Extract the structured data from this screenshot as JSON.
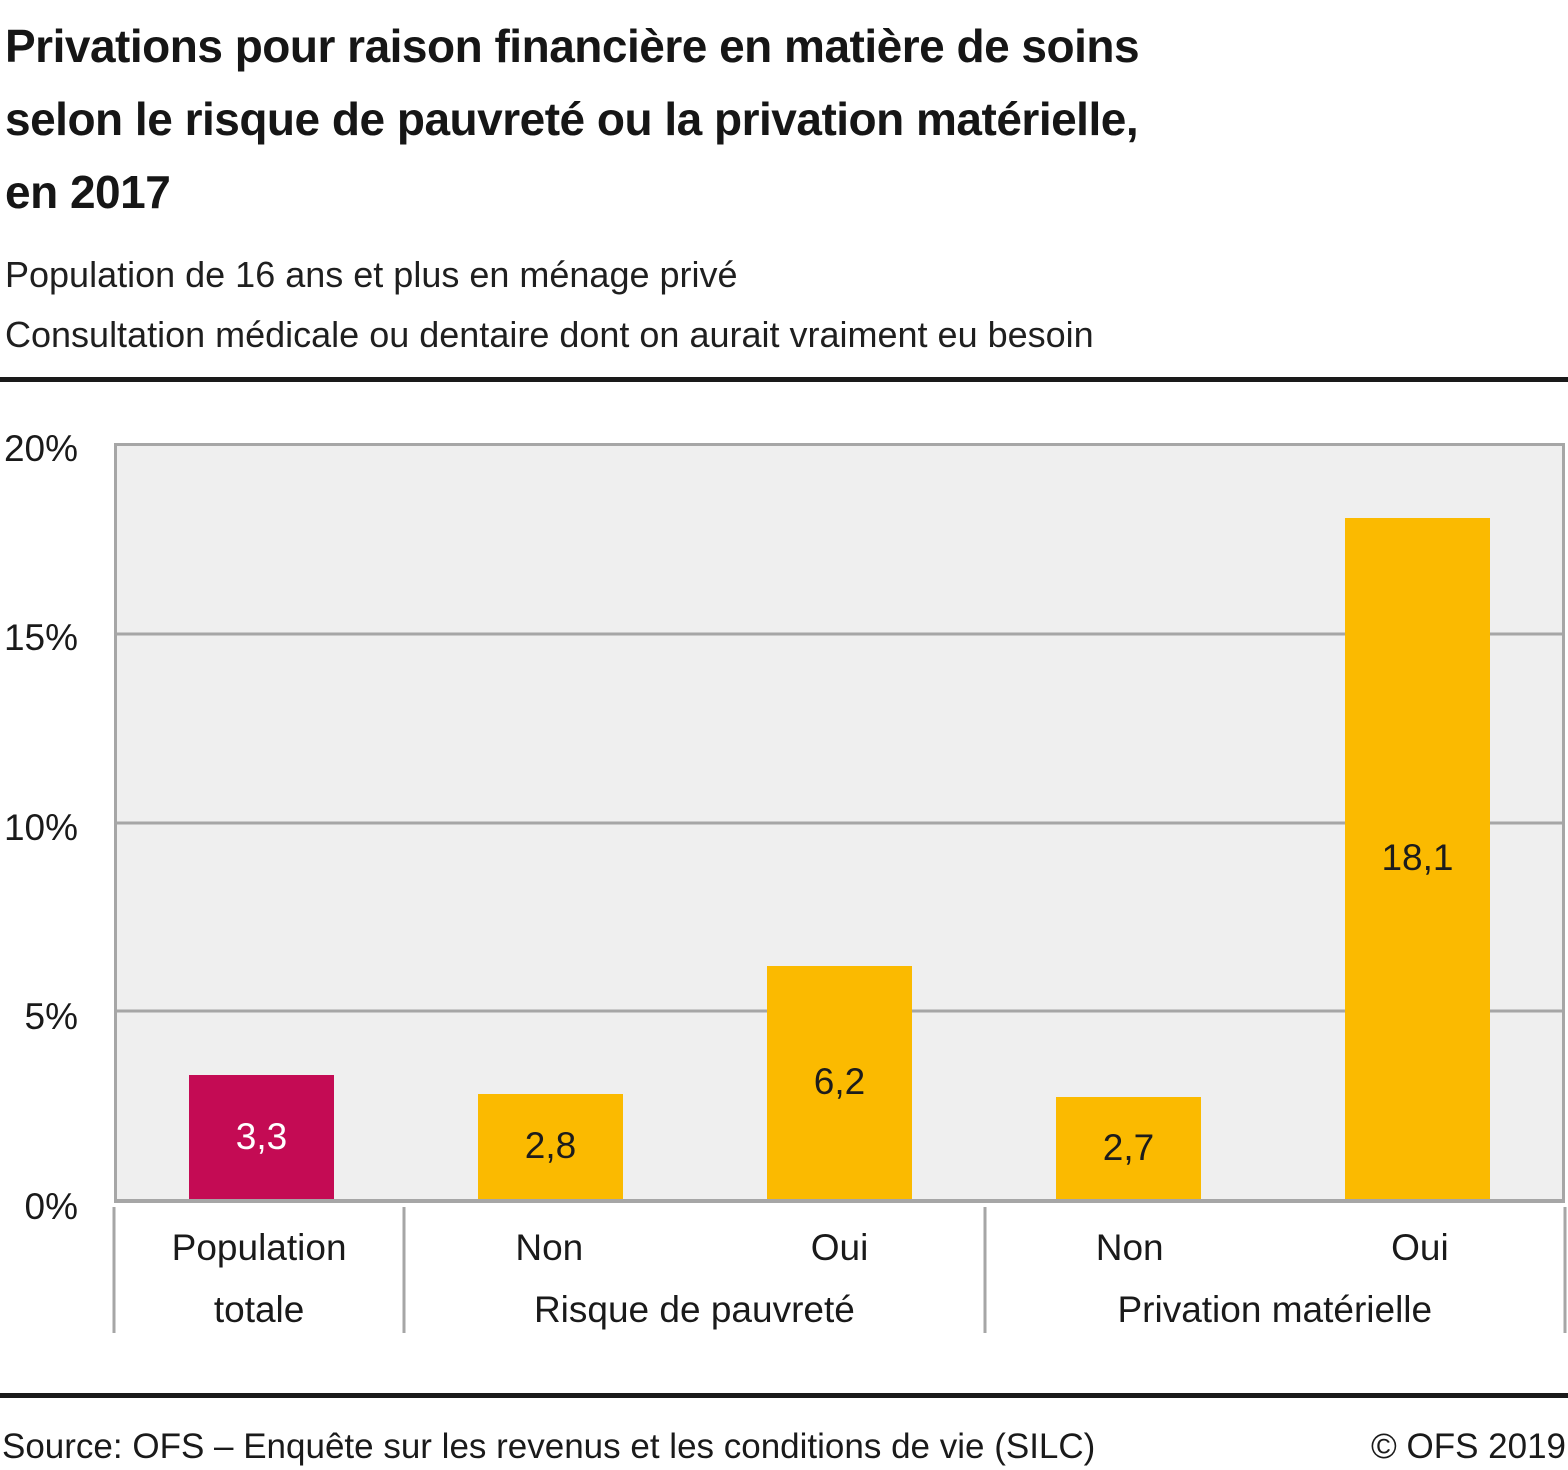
{
  "page": {
    "title_lines": [
      "Privations pour raison financière en matière de soins",
      "selon le risque de pauvreté ou la privation matérielle,",
      "en 2017"
    ],
    "subtitle_lines": [
      "Population de 16 ans et plus en ménage privé",
      "Consultation médicale ou dentaire dont on aurait vraiment eu besoin"
    ],
    "footer": {
      "source": "Source: OFS – Enquête sur les revenus et les conditions de vie (SILC)",
      "copyright": "© OFS 2019"
    }
  },
  "chart_data": {
    "type": "bar",
    "title": "Privations pour raison financière en matière de soins selon le risque de pauvreté ou la privation matérielle, en 2017",
    "subtitle": [
      "Population de 16 ans et plus en ménage privé",
      "Consultation médicale ou dentaire dont on aurait vraiment eu besoin"
    ],
    "categories": [
      "Population totale",
      "Risque de pauvreté – Non",
      "Risque de pauvreté – Oui",
      "Privation matérielle – Non",
      "Privation matérielle – Oui"
    ],
    "values": [
      3.3,
      2.8,
      6.2,
      2.7,
      18.1
    ],
    "value_labels": [
      "3,3",
      "2,8",
      "6,2",
      "2,7",
      "18,1"
    ],
    "unit": "%",
    "ylim": [
      0,
      20
    ],
    "yticks_top_to_bottom": [
      "20%",
      "15%",
      "10%",
      "5%",
      "0%"
    ],
    "grid": true,
    "legend": false,
    "bar_colors": [
      "#C40B54",
      "#FBBA00",
      "#FBBA00",
      "#FBBA00",
      "#FBBA00"
    ],
    "value_label_colors": [
      "#ffffff",
      "#1c1c1c",
      "#1c1c1c",
      "#1c1c1c",
      "#1c1c1c"
    ],
    "x_groups": [
      {
        "name": "",
        "categories": [
          "Population totale"
        ]
      },
      {
        "name": "Risque de pauvreté",
        "categories": [
          "Non",
          "Oui"
        ]
      },
      {
        "name": "Privation matérielle",
        "categories": [
          "Non",
          "Oui"
        ]
      }
    ],
    "axis_labels_row1": [
      "Population",
      "Non",
      "Oui",
      "Non",
      "Oui"
    ],
    "axis_labels_row2": [
      "totale",
      "Risque de pauvreté",
      "Privation matérielle"
    ]
  },
  "colors": {
    "bar_yellow": "#FBBA00",
    "bar_red": "#C40B54",
    "gridline": "#A6A6A6",
    "plot_background": "#EFEFEF",
    "text": "#1A1A1A"
  }
}
